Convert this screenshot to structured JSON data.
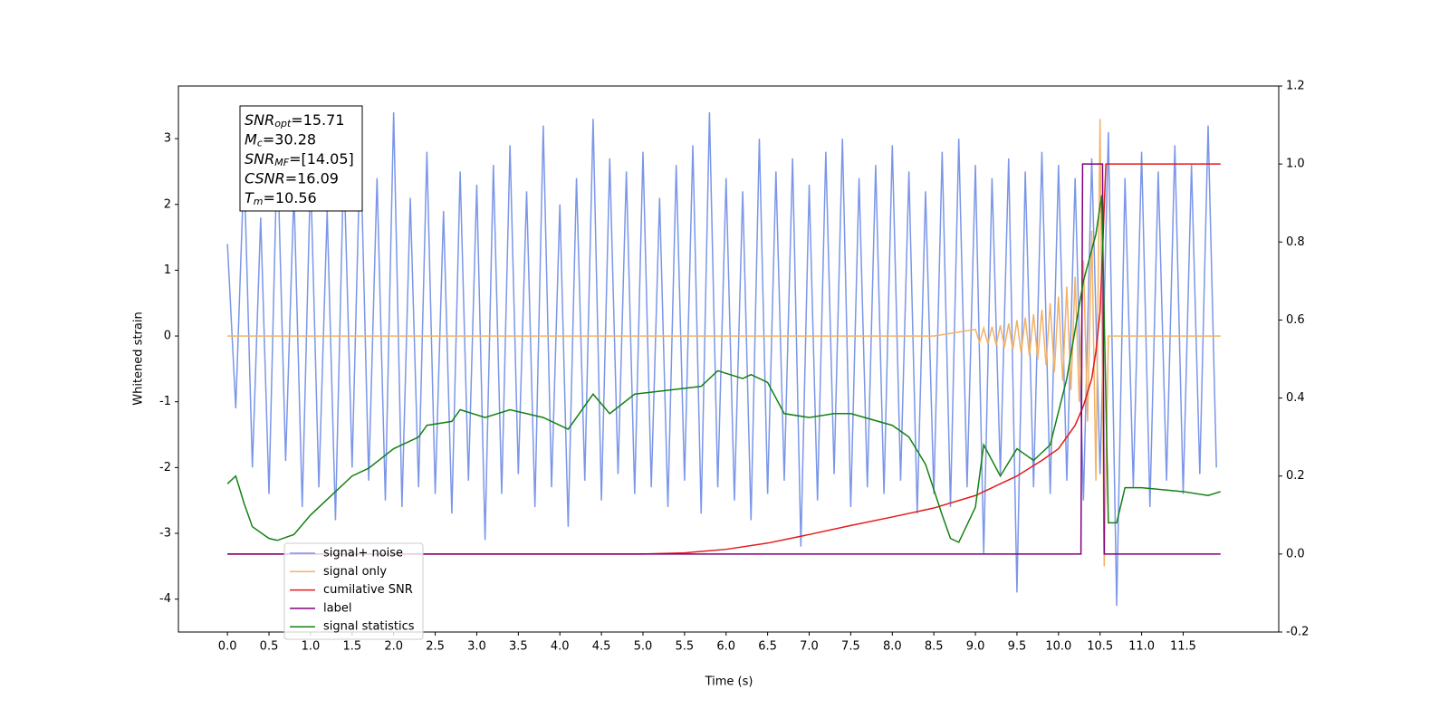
{
  "chart_data": {
    "type": "line",
    "xlabel": "Time (s)",
    "ylabel": "Whitened strain",
    "xlim": [
      -0.59,
      12.65
    ],
    "ylim": [
      -4.5,
      3.8
    ],
    "y2lim": [
      -0.2,
      1.2
    ],
    "xticks": [
      {
        "value": 0,
        "label": "0.0"
      },
      0.5,
      {
        "value": 1,
        "label": "1.0"
      },
      1.5,
      {
        "value": 2,
        "label": "2.0"
      },
      2.5,
      {
        "value": 3,
        "label": "3.0"
      },
      3.5,
      {
        "value": 4,
        "label": "4.0"
      },
      4.5,
      {
        "value": 5,
        "label": "5.0"
      },
      5.5,
      {
        "value": 6,
        "label": "6.0"
      },
      6.5,
      {
        "value": 7,
        "label": "7.0"
      },
      7.5,
      {
        "value": 8,
        "label": "8.0"
      },
      8.5,
      {
        "value": 9,
        "label": "9.0"
      },
      9.5,
      {
        "value": 10,
        "label": "10.0"
      },
      10.5,
      {
        "value": 11,
        "label": "11.0"
      },
      11.5
    ],
    "yticks": [
      -4,
      -3,
      -2,
      -1,
      0,
      1,
      2,
      3
    ],
    "y2ticks": [
      -0.2,
      {
        "value": 0,
        "label": "0.0"
      },
      0.2,
      0.4,
      0.6,
      0.8,
      {
        "value": 1,
        "label": "1.0"
      },
      1.2
    ],
    "legend_loc": "lower left",
    "annotations": [
      {
        "symbol": "SNR",
        "sub": "opt",
        "text": "=15.71"
      },
      {
        "symbol": "M",
        "sub": "c",
        "text": "=30.28"
      },
      {
        "symbol": "SNR",
        "sub": "MF",
        "text": "=[14.05]"
      },
      {
        "symbol": "CSNR",
        "text": "=16.09"
      },
      {
        "symbol": "T",
        "sub": "m",
        "text": "=10.56"
      }
    ],
    "series": [
      {
        "name": "signal+ noise",
        "color": "#7b96e8",
        "x": [
          0,
          0.1,
          0.2,
          0.3,
          0.4,
          0.5,
          0.6,
          0.7,
          0.8,
          0.9,
          1,
          1.1,
          1.2,
          1.3,
          1.4,
          1.5,
          1.6,
          1.7,
          1.8,
          1.9,
          2,
          2.1,
          2.2,
          2.3,
          2.4,
          2.5,
          2.6,
          2.7,
          2.8,
          2.9,
          3,
          3.1,
          3.2,
          3.3,
          3.4,
          3.5,
          3.6,
          3.7,
          3.8,
          3.9,
          4,
          4.1,
          4.2,
          4.3,
          4.4,
          4.5,
          4.6,
          4.7,
          4.8,
          4.9,
          5,
          5.1,
          5.2,
          5.3,
          5.4,
          5.5,
          5.6,
          5.7,
          5.8,
          5.9,
          6,
          6.1,
          6.2,
          6.3,
          6.4,
          6.5,
          6.6,
          6.7,
          6.8,
          6.9,
          7,
          7.1,
          7.2,
          7.3,
          7.4,
          7.5,
          7.6,
          7.7,
          7.8,
          7.9,
          8,
          8.1,
          8.2,
          8.3,
          8.4,
          8.5,
          8.6,
          8.7,
          8.8,
          8.9,
          9,
          9.1,
          9.2,
          9.3,
          9.4,
          9.5,
          9.6,
          9.7,
          9.8,
          9.9,
          10,
          10.1,
          10.2,
          10.3,
          10.4,
          10.5,
          10.6,
          10.7,
          10.8,
          10.9,
          11,
          11.1,
          11.2,
          11.3,
          11.4,
          11.5,
          11.6,
          11.7,
          11.8,
          11.9
        ],
        "values": [
          1.4,
          -1.1,
          2.6,
          -2.0,
          1.8,
          -2.4,
          2.9,
          -1.9,
          2.2,
          -2.6,
          2.5,
          -2.3,
          1.9,
          -2.8,
          2.7,
          -2.0,
          3.0,
          -2.2,
          2.4,
          -2.5,
          3.4,
          -2.6,
          2.1,
          -2.3,
          2.8,
          -2.4,
          1.9,
          -2.7,
          2.5,
          -2.2,
          2.3,
          -3.1,
          2.6,
          -2.4,
          2.9,
          -2.1,
          2.2,
          -2.6,
          3.2,
          -2.3,
          2.0,
          -2.9,
          2.4,
          -2.2,
          3.3,
          -2.5,
          2.7,
          -2.1,
          2.5,
          -2.4,
          2.8,
          -2.3,
          2.1,
          -2.6,
          2.6,
          -2.2,
          2.9,
          -2.7,
          3.4,
          -2.3,
          2.4,
          -2.5,
          2.2,
          -2.8,
          3.0,
          -2.4,
          2.5,
          -2.2,
          2.7,
          -3.2,
          2.3,
          -2.5,
          2.8,
          -2.1,
          3.0,
          -2.6,
          2.4,
          -2.3,
          2.6,
          -2.4,
          2.9,
          -2.2,
          2.5,
          -2.7,
          2.2,
          -2.4,
          2.8,
          -2.6,
          3.0,
          -2.3,
          2.6,
          -3.3,
          2.4,
          -2.1,
          2.7,
          -3.9,
          2.5,
          -2.3,
          2.8,
          -2.4,
          2.6,
          -2.2,
          2.4,
          -2.5,
          2.7,
          -2.1,
          3.1,
          -4.1,
          2.4,
          -2.3,
          2.8,
          -2.6,
          2.5,
          -2.2,
          2.9,
          -2.4,
          2.6,
          -2.1,
          3.2,
          -2.0
        ]
      },
      {
        "name": "signal only",
        "color": "#f2b266",
        "x": [
          0,
          8.5,
          9.0,
          9.05,
          9.1,
          9.15,
          9.2,
          9.25,
          9.3,
          9.35,
          9.4,
          9.45,
          9.5,
          9.55,
          9.6,
          9.65,
          9.7,
          9.75,
          9.8,
          9.85,
          9.9,
          9.95,
          10.0,
          10.05,
          10.1,
          10.15,
          10.2,
          10.25,
          10.3,
          10.35,
          10.4,
          10.45,
          10.5,
          10.55,
          10.6,
          11.95
        ],
        "values": [
          0,
          0,
          0.1,
          -0.1,
          0.12,
          -0.12,
          0.14,
          -0.14,
          0.16,
          -0.17,
          0.19,
          -0.21,
          0.24,
          -0.26,
          0.28,
          -0.3,
          0.33,
          -0.36,
          0.4,
          -0.44,
          0.5,
          -0.55,
          0.6,
          -0.68,
          0.75,
          -0.82,
          0.9,
          -1.0,
          1.15,
          -1.3,
          1.6,
          -2.2,
          3.3,
          -3.5,
          0,
          0
        ]
      },
      {
        "name": "cumilative SNR",
        "color": "#e41a1c",
        "axis": "y2",
        "x": [
          0,
          5.0,
          5.5,
          6.0,
          6.5,
          7.0,
          7.5,
          8.0,
          8.5,
          9.0,
          9.5,
          9.8,
          10.0,
          10.2,
          10.3,
          10.4,
          10.45,
          10.5,
          10.53,
          10.57,
          11.95
        ],
        "values": [
          0,
          0,
          0.003,
          0.012,
          0.028,
          0.05,
          0.073,
          0.095,
          0.118,
          0.15,
          0.2,
          0.24,
          0.27,
          0.33,
          0.38,
          0.45,
          0.52,
          0.62,
          0.78,
          1.0,
          1.0
        ]
      },
      {
        "name": "label",
        "color": "#800080",
        "axis": "y2",
        "x": [
          0,
          10.27,
          10.29,
          10.53,
          10.55,
          11.95
        ],
        "values": [
          0,
          0,
          1,
          1,
          0,
          0
        ]
      },
      {
        "name": "signal statistics",
        "color": "#138013",
        "axis": "y2",
        "x": [
          0,
          0.1,
          0.2,
          0.3,
          0.5,
          0.6,
          0.8,
          1.0,
          1.2,
          1.5,
          1.7,
          2.0,
          2.3,
          2.4,
          2.7,
          2.8,
          3.1,
          3.4,
          3.8,
          4.1,
          4.4,
          4.6,
          4.9,
          5.3,
          5.7,
          5.9,
          6.2,
          6.3,
          6.5,
          6.7,
          7.0,
          7.3,
          7.5,
          8.0,
          8.2,
          8.4,
          8.6,
          8.7,
          8.8,
          9.0,
          9.1,
          9.3,
          9.5,
          9.7,
          9.9,
          10.1,
          10.3,
          10.45,
          10.52,
          10.6,
          10.7,
          10.8,
          11.0,
          11.5,
          11.8,
          11.95
        ],
        "values": [
          0.18,
          0.2,
          0.13,
          0.07,
          0.04,
          0.035,
          0.05,
          0.1,
          0.14,
          0.2,
          0.22,
          0.27,
          0.3,
          0.33,
          0.34,
          0.37,
          0.35,
          0.37,
          0.35,
          0.32,
          0.41,
          0.36,
          0.41,
          0.42,
          0.43,
          0.47,
          0.45,
          0.46,
          0.44,
          0.36,
          0.35,
          0.36,
          0.36,
          0.33,
          0.3,
          0.23,
          0.1,
          0.04,
          0.03,
          0.12,
          0.28,
          0.2,
          0.27,
          0.24,
          0.28,
          0.45,
          0.7,
          0.82,
          0.92,
          0.08,
          0.08,
          0.17,
          0.17,
          0.16,
          0.15,
          0.16
        ]
      }
    ]
  }
}
